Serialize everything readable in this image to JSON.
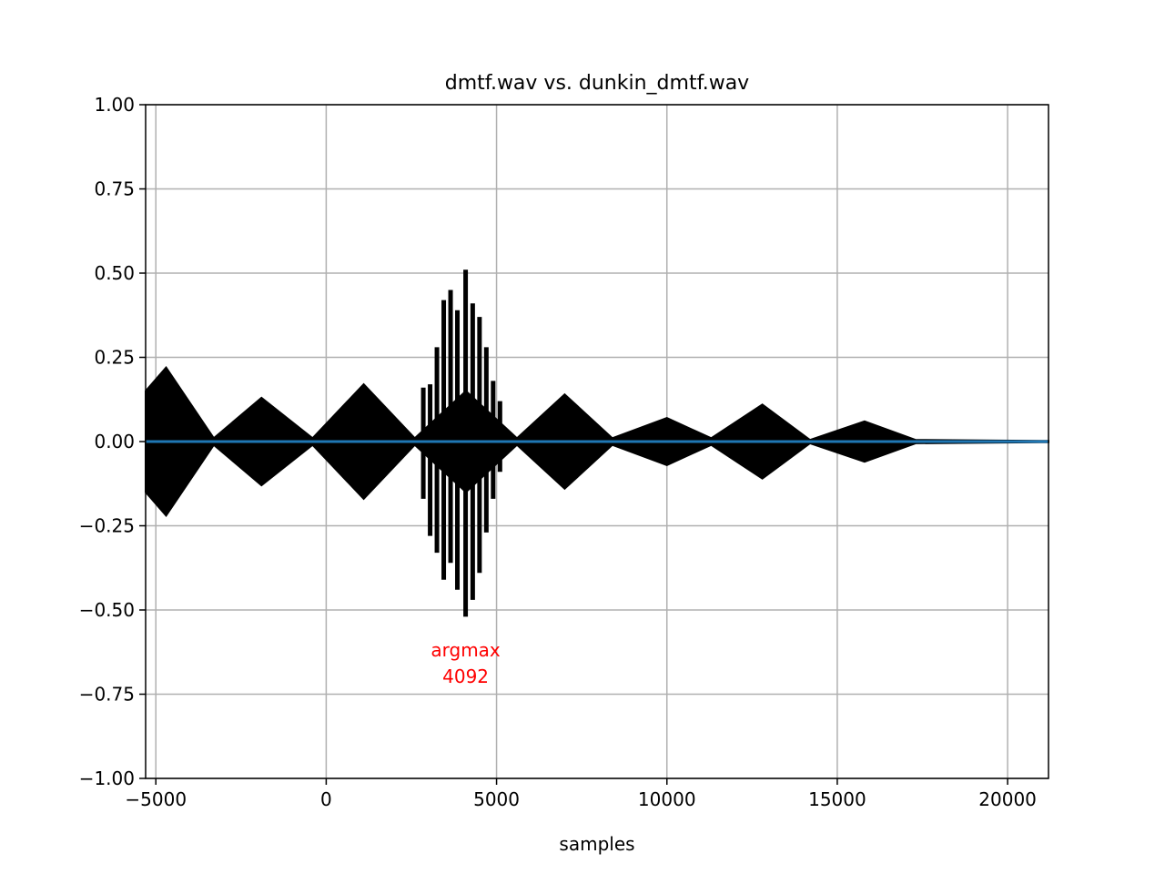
{
  "chart_data": {
    "type": "line",
    "title": "dmtf.wav vs. dunkin_dmtf.wav",
    "xlabel": "samples",
    "ylabel": "",
    "xlim": [
      -5300,
      21200
    ],
    "ylim": [
      -1.0,
      1.0
    ],
    "x_ticks": [
      -5000,
      0,
      5000,
      10000,
      15000,
      20000
    ],
    "x_tick_labels": [
      "−5000",
      "0",
      "5000",
      "10000",
      "15000",
      "20000"
    ],
    "y_ticks": [
      1.0,
      0.75,
      0.5,
      0.25,
      0.0,
      -0.25,
      -0.5,
      -0.75,
      -1.0
    ],
    "y_tick_labels": [
      "1.00",
      "0.75",
      "0.50",
      "0.25",
      "0.00",
      "−0.25",
      "−0.50",
      "−0.75",
      "−1.00"
    ],
    "grid": true,
    "colors": {
      "correlation": "#000000",
      "baseline": "#1f77b4",
      "annotation": "#ff0000",
      "grid": "#b0b0b0"
    },
    "series": [
      {
        "kind": "envelope",
        "x": [
          -5300,
          -4700,
          -3300,
          -1900,
          -400,
          1100,
          2600,
          4100,
          5600,
          7000,
          8400,
          10000,
          11300,
          12800,
          14200,
          15800,
          17300,
          21200
        ],
        "y": [
          0.15,
          0.22,
          0.01,
          0.13,
          0.01,
          0.17,
          0.01,
          0.15,
          0.01,
          0.14,
          0.01,
          0.07,
          0.01,
          0.11,
          0.005,
          0.06,
          0.005,
          0.002
        ]
      },
      {
        "kind": "spikes",
        "x": [
          2850,
          3050,
          3250,
          3450,
          3650,
          3850,
          4092,
          4300,
          4500,
          4700,
          4900,
          5100
        ],
        "ymax": [
          0.16,
          0.17,
          0.28,
          0.42,
          0.45,
          0.39,
          0.51,
          0.41,
          0.37,
          0.28,
          0.18,
          0.12
        ],
        "ymin": [
          -0.17,
          -0.28,
          -0.33,
          -0.41,
          -0.36,
          -0.44,
          -0.52,
          -0.47,
          -0.39,
          -0.27,
          -0.17,
          -0.09
        ]
      },
      {
        "kind": "baseline",
        "x": [
          -5300,
          21200
        ],
        "y": [
          0,
          0
        ]
      }
    ],
    "annotation": {
      "x": 4092,
      "y": -0.6,
      "line1": "argmax",
      "line2": "4092"
    }
  }
}
